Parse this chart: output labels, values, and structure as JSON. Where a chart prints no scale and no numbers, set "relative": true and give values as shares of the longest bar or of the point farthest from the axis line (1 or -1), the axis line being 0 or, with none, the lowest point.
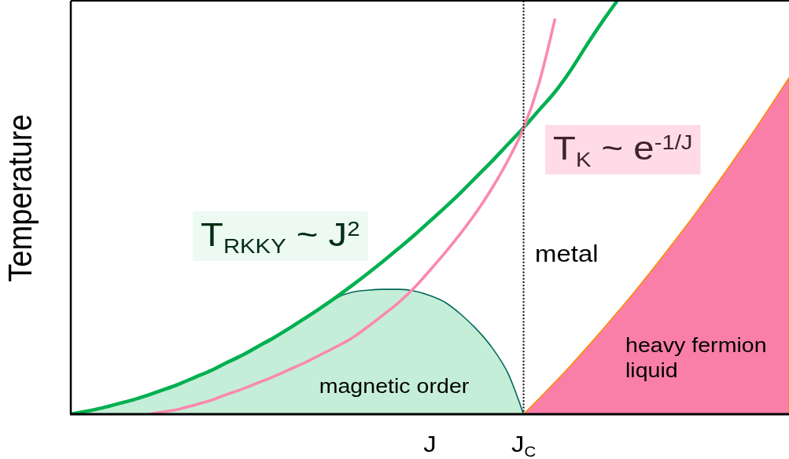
{
  "chart_data": {
    "type": "line",
    "relative": true,
    "ylabel": "Temperature",
    "categories": [
      null,
      null,
      null,
      null,
      null,
      null,
      null,
      null,
      null,
      null,
      null,
      null,
      null,
      null,
      null,
      null,
      null,
      null,
      null,
      null,
      null,
      null,
      null,
      "J",
      null,
      null,
      null,
      null,
      null,
      "J$_{C}$",
      null,
      null,
      null,
      null,
      null,
      null,
      null,
      null,
      null,
      null,
      null,
      null,
      null,
      null,
      null,
      null,
      null
    ],
    "series": [
      {
        "name": "magnetic order",
        "type": "area",
        "color": "#c5eed8",
        "values": [
          0,
          0.007,
          0.015,
          0.025,
          0.035,
          0.047,
          0.06,
          0.074,
          0.09,
          0.106,
          0.125,
          0.143,
          0.164,
          0.185,
          0.208,
          0.232,
          0.257,
          0.281,
          0.295,
          0.3,
          0.302,
          0.302,
          0.298,
          0.287,
          0.27,
          0.241,
          0.205,
          0.16,
          0.099,
          0,
          null,
          null,
          null,
          null,
          null,
          null,
          null,
          null,
          null,
          null,
          null,
          null,
          null,
          null,
          null,
          null,
          null
        ]
      },
      {
        "name": "heavy fermion liquid",
        "type": "area",
        "color": "#f97fa8",
        "values": [
          null,
          null,
          null,
          null,
          null,
          null,
          null,
          null,
          null,
          null,
          null,
          null,
          null,
          null,
          null,
          null,
          null,
          null,
          null,
          null,
          null,
          null,
          null,
          null,
          null,
          null,
          null,
          null,
          null,
          0,
          0.038,
          0.077,
          0.117,
          0.159,
          0.202,
          0.246,
          0.291,
          0.338,
          0.386,
          0.435,
          0.485,
          0.537,
          0.59,
          0.644,
          0.699,
          0.756,
          0.814
        ]
      },
      {
        "name": "T$_{RKKY}$ ~ J$^{2}$",
        "color": "#00b050",
        "values": [
          0,
          0.007,
          0.015,
          0.025,
          0.035,
          0.047,
          0.06,
          0.074,
          0.09,
          0.106,
          0.125,
          0.143,
          0.164,
          0.185,
          0.208,
          0.232,
          0.257,
          0.283,
          0.311,
          0.34,
          0.37,
          0.401,
          0.433,
          0.467,
          0.501,
          0.537,
          0.575,
          0.613,
          0.653,
          0.693,
          0.736,
          0.779,
          0.831,
          0.89,
          0.947,
          1,
          null,
          null,
          null,
          null,
          null,
          null,
          null,
          null,
          null,
          null,
          null
        ]
      },
      {
        "name": "T$_{K}$ ~ e$^{-1/J}$",
        "color": "#fb88ae",
        "values": [
          null,
          null,
          null,
          null,
          null,
          0,
          0.006,
          0.013,
          0.023,
          0.034,
          0.048,
          0.061,
          0.076,
          0.091,
          0.108,
          0.125,
          0.144,
          0.163,
          0.184,
          0.211,
          0.24,
          0.27,
          0.306,
          0.348,
          0.392,
          0.439,
          0.49,
          0.548,
          0.614,
          0.692,
          0.802,
          0.954,
          null,
          null,
          null,
          null,
          null,
          null,
          null,
          null,
          null,
          null,
          null,
          null,
          null,
          null,
          null
        ]
      }
    ],
    "ref_lines": [
      {
        "axis": "x",
        "value": "J$_{C}$",
        "color": "#000000",
        "line_style": "dotted"
      }
    ],
    "annotations": [
      "metal"
    ]
  }
}
